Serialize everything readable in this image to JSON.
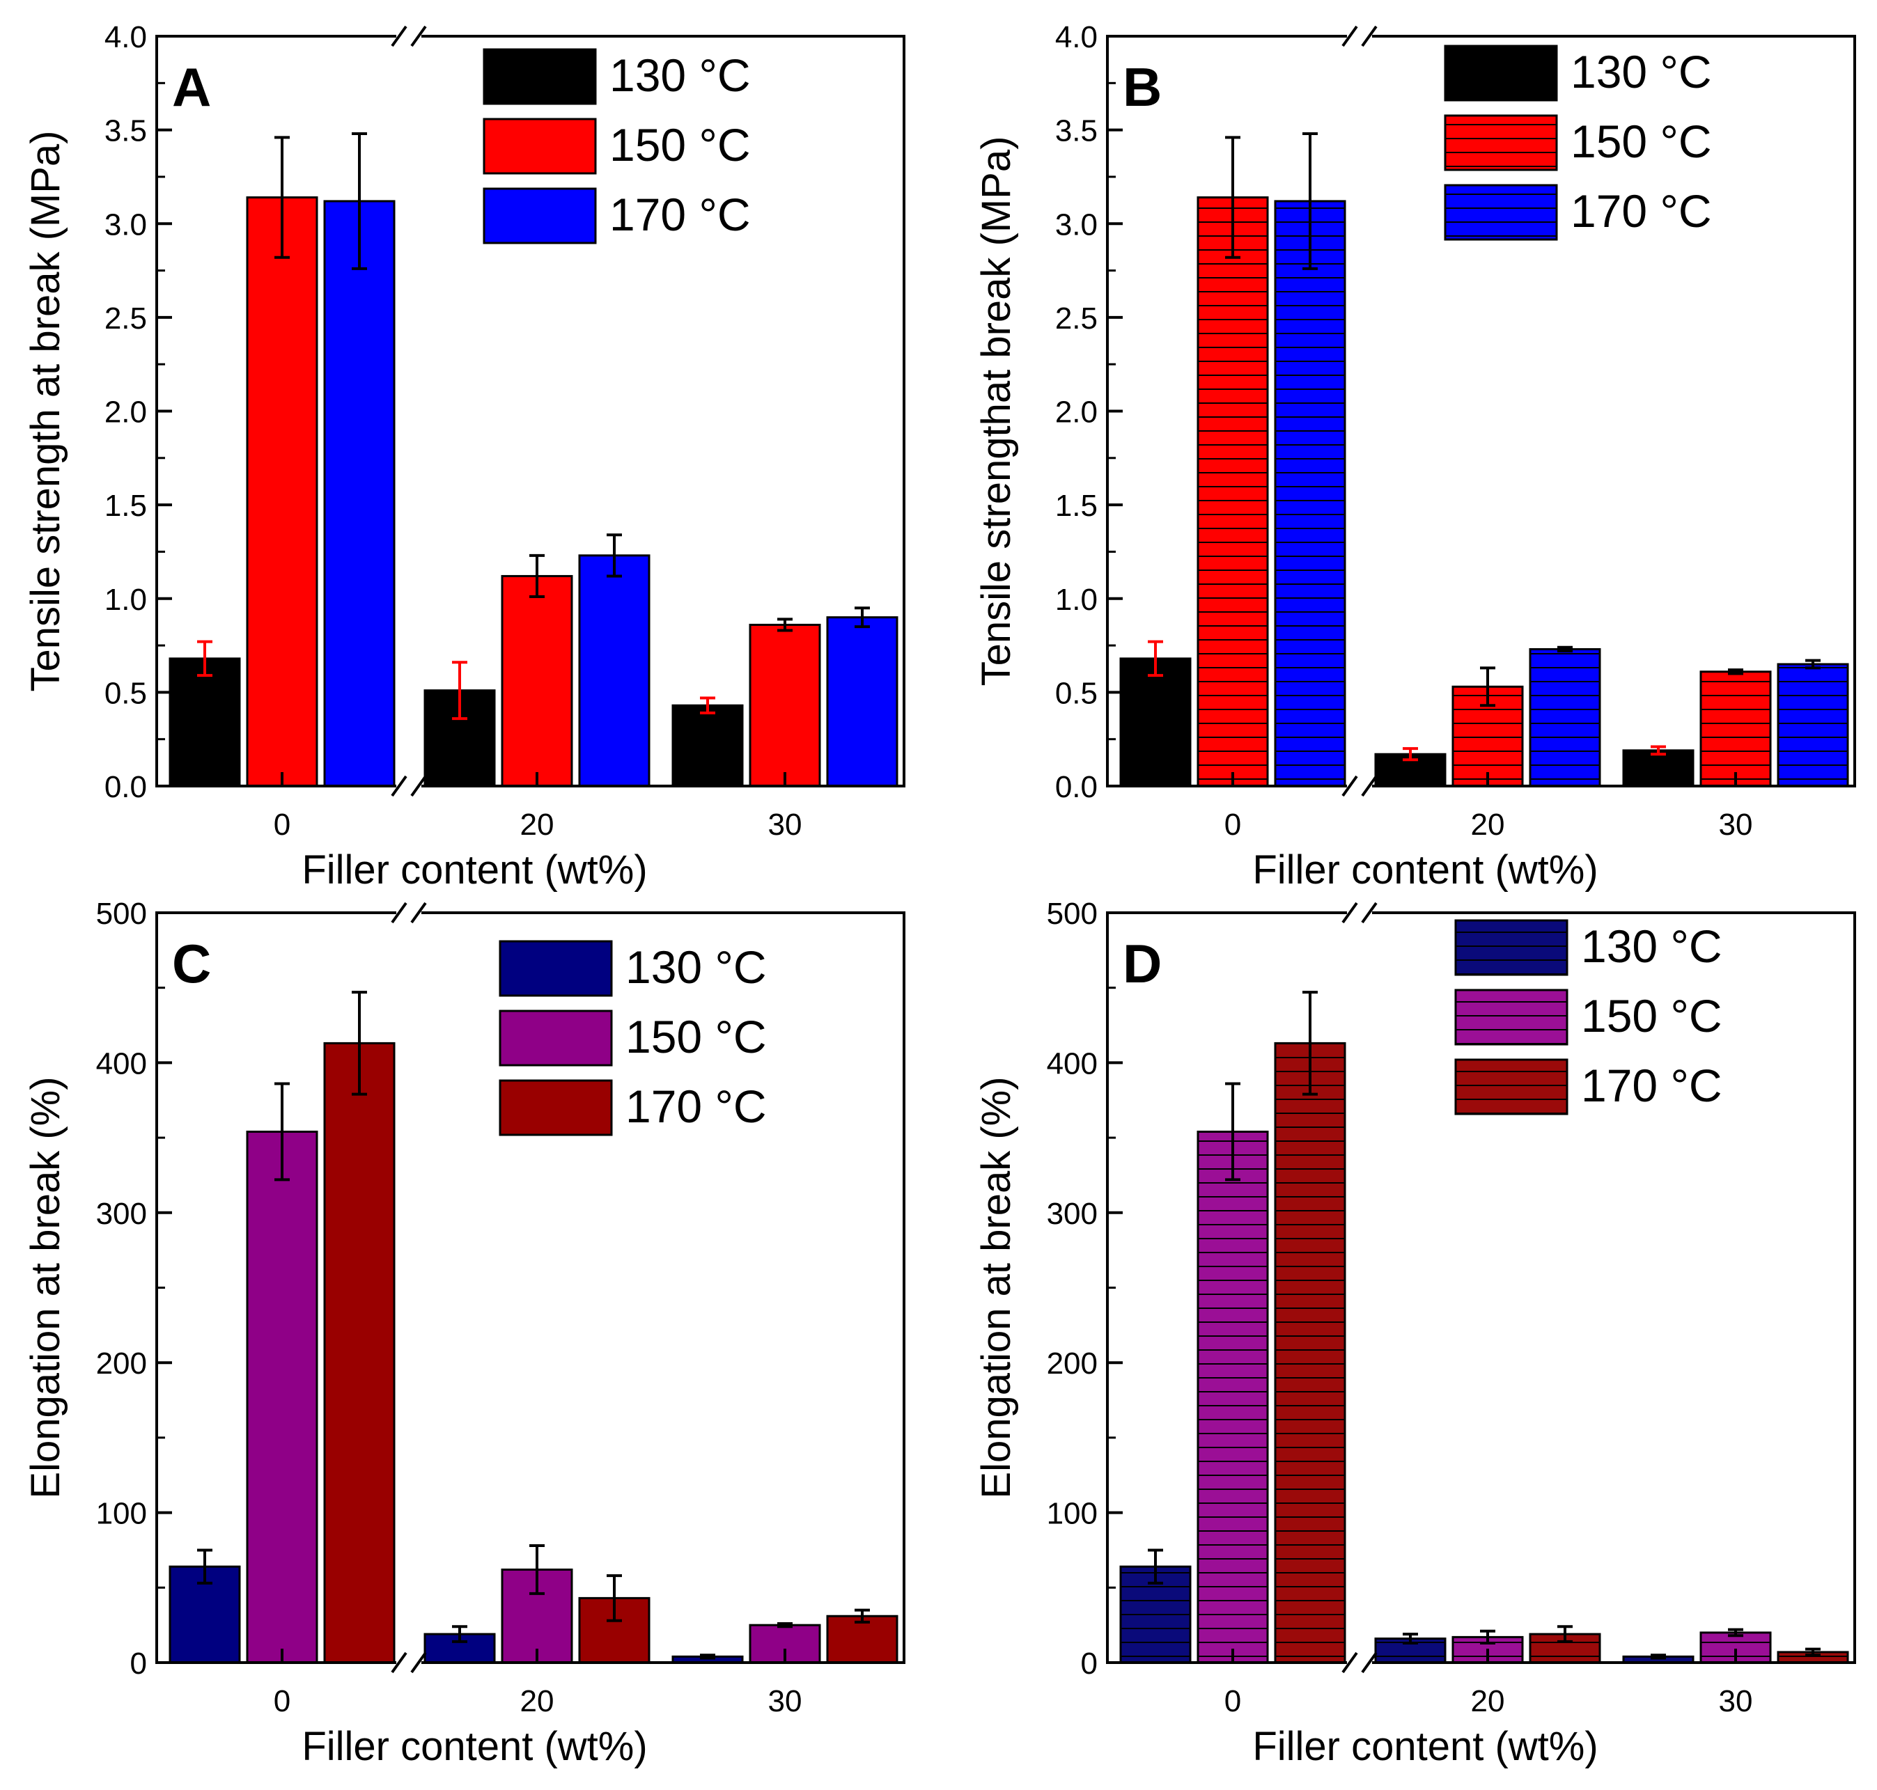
{
  "chart_data": [
    {
      "panel": "A",
      "type": "bar",
      "xlabel": "Filler content (wt%)",
      "ylabel": "Tensile strength at break (MPa)",
      "ylim": [
        0,
        4.0
      ],
      "yticks": [
        "0.0",
        "0.5",
        "1.0",
        "1.5",
        "2.0",
        "2.5",
        "3.0",
        "3.5",
        "4.0"
      ],
      "categories": [
        "0",
        "20",
        "30"
      ],
      "hatched": false,
      "series": [
        {
          "name": "130 °C",
          "color": "#000000",
          "values": [
            0.68,
            0.51,
            0.43
          ],
          "errors": [
            0.09,
            0.15,
            0.04
          ],
          "error_color": "#ff0000"
        },
        {
          "name": "150 °C",
          "color": "#ff0000",
          "values": [
            3.14,
            1.12,
            0.86
          ],
          "errors": [
            0.32,
            0.11,
            0.03
          ],
          "error_color": "#000000"
        },
        {
          "name": "170 °C",
          "color": "#0000ff",
          "values": [
            3.12,
            1.23,
            0.9
          ],
          "errors": [
            0.36,
            0.11,
            0.05
          ],
          "error_color": "#000000"
        }
      ]
    },
    {
      "panel": "B",
      "type": "bar",
      "xlabel": "Filler content (wt%)",
      "ylabel": "Tensile strengthat break  (MPa)",
      "ylim": [
        0,
        4.0
      ],
      "yticks": [
        "0.0",
        "0.5",
        "1.0",
        "1.5",
        "2.0",
        "2.5",
        "3.0",
        "3.5",
        "4.0"
      ],
      "categories": [
        "0",
        "20",
        "30"
      ],
      "hatched": true,
      "series": [
        {
          "name": "130 °C",
          "color": "#000000",
          "values": [
            0.68,
            0.17,
            0.19
          ],
          "errors": [
            0.09,
            0.03,
            0.02
          ],
          "error_color": "#ff0000"
        },
        {
          "name": "150 °C",
          "color": "#ff0000",
          "values": [
            3.14,
            0.53,
            0.61
          ],
          "errors": [
            0.32,
            0.1,
            0.01
          ],
          "error_color": "#000000"
        },
        {
          "name": "170 °C",
          "color": "#0000ff",
          "values": [
            3.12,
            0.73,
            0.65
          ],
          "errors": [
            0.36,
            0.01,
            0.02
          ],
          "error_color": "#000000"
        }
      ]
    },
    {
      "panel": "C",
      "type": "bar",
      "xlabel": "Filler content (wt%)",
      "ylabel": "Elongation at break (%)",
      "ylim": [
        0,
        500
      ],
      "yticks": [
        "0",
        "100",
        "200",
        "300",
        "400",
        "500"
      ],
      "categories": [
        "0",
        "20",
        "30"
      ],
      "hatched": false,
      "series": [
        {
          "name": "130 °C",
          "color": "#000080",
          "values": [
            64,
            19,
            4
          ],
          "errors": [
            11,
            5,
            1
          ],
          "error_color": "#000000"
        },
        {
          "name": "150 °C",
          "color": "#8f0087",
          "values": [
            354,
            62,
            25
          ],
          "errors": [
            32,
            16,
            1
          ],
          "error_color": "#000000"
        },
        {
          "name": "170 °C",
          "color": "#990000",
          "values": [
            413,
            43,
            31
          ],
          "errors": [
            34,
            15,
            4
          ],
          "error_color": "#000000"
        }
      ]
    },
    {
      "panel": "D",
      "type": "bar",
      "xlabel": "Filler content (wt%)",
      "ylabel": "Elongation at break (%)",
      "ylim": [
        0,
        500
      ],
      "yticks": [
        "0",
        "100",
        "200",
        "300",
        "400",
        "500"
      ],
      "categories": [
        "0",
        "20",
        "30"
      ],
      "hatched": true,
      "series": [
        {
          "name": "130 °C",
          "color": "#0a0a7a",
          "values": [
            64,
            16,
            4
          ],
          "errors": [
            11,
            3,
            1
          ],
          "error_color": "#000000"
        },
        {
          "name": "150 °C",
          "color": "#9b0f96",
          "values": [
            354,
            17,
            20
          ],
          "errors": [
            32,
            4,
            2
          ],
          "error_color": "#000000"
        },
        {
          "name": "170 °C",
          "color": "#9b0a0a",
          "values": [
            413,
            19,
            7
          ],
          "errors": [
            34,
            5,
            2
          ],
          "error_color": "#000000"
        }
      ]
    }
  ]
}
